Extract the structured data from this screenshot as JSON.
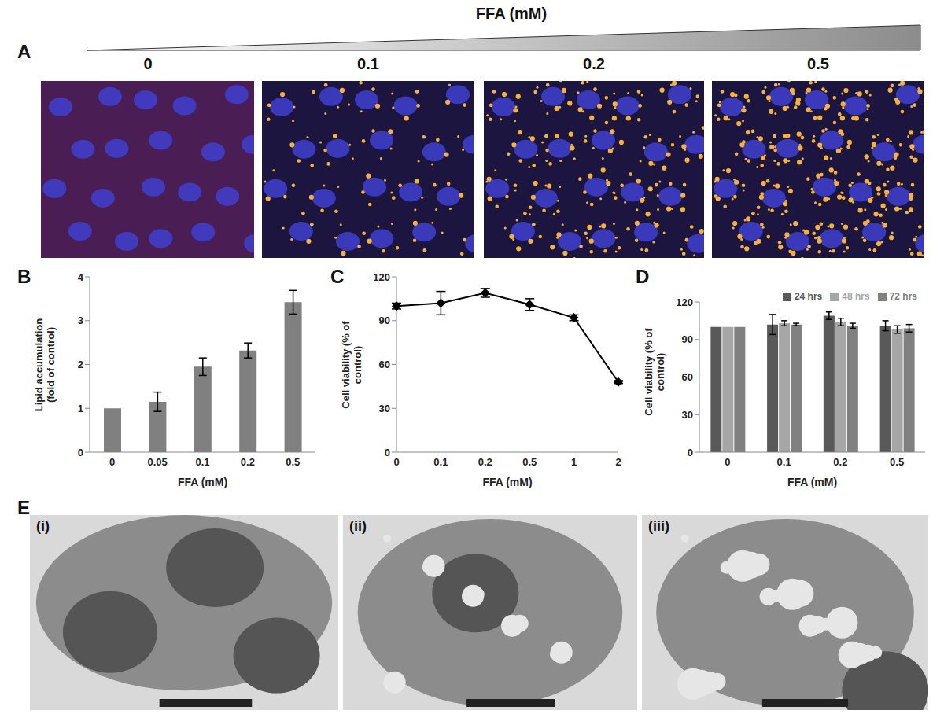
{
  "figure": {
    "panel_labels": [
      "A",
      "B",
      "C",
      "D",
      "E"
    ],
    "gradient_label": "FFA (mM)",
    "micrograph_labels": [
      "0",
      "0.1",
      "0.2",
      "0.5"
    ],
    "tem_labels": [
      "(i)",
      "(ii)",
      "(iii)"
    ]
  },
  "chart_data": [
    {
      "type": "bar",
      "categories": [
        "0",
        "0.05",
        "0.1",
        "0.2",
        "0.5"
      ],
      "values": [
        1,
        1.15,
        1.95,
        2.32,
        3.42
      ],
      "errors": [
        0,
        0.22,
        0.2,
        0.17,
        0.27
      ],
      "color": "#808080",
      "xlabel": "FFA (mM)",
      "ylabel": "Lipid accumulation (fold of control)",
      "ylim": [
        0,
        4
      ],
      "yticks": [
        0,
        1,
        2,
        3,
        4
      ],
      "grid": false
    },
    {
      "type": "line",
      "categories": [
        "0",
        "0.1",
        "0.2",
        "0.5",
        "1",
        "2"
      ],
      "values": [
        100,
        102,
        109,
        101,
        92,
        48
      ],
      "errors": [
        2,
        8,
        3,
        4,
        2,
        1
      ],
      "color": "#000000",
      "marker": "diamond",
      "xlabel": "FFA (mM)",
      "ylabel": "Cell viability (% of control)",
      "ylim": [
        0,
        120
      ],
      "yticks": [
        0,
        30,
        60,
        90,
        120
      ],
      "grid": false
    },
    {
      "type": "bar",
      "categories": [
        "0",
        "0.1",
        "0.2",
        "0.5"
      ],
      "series": [
        {
          "name": "24 hrs",
          "color": "#595959",
          "values": [
            100,
            102,
            109,
            101
          ],
          "errors": [
            0,
            8,
            3,
            4
          ]
        },
        {
          "name": "48 hrs",
          "color": "#a6a6a6",
          "values": [
            100,
            103,
            104,
            98
          ],
          "errors": [
            0,
            2,
            3,
            3
          ]
        },
        {
          "name": "72 hrs",
          "color": "#808080",
          "values": [
            100,
            102,
            101,
            99
          ],
          "errors": [
            0,
            1,
            2,
            3
          ]
        }
      ],
      "legend": "top",
      "xlabel": "FFA (mM)",
      "ylabel": "Cell viability (% of control)",
      "ylim": [
        0,
        120
      ],
      "yticks": [
        0,
        30,
        60,
        90,
        120
      ],
      "grid": false
    }
  ]
}
